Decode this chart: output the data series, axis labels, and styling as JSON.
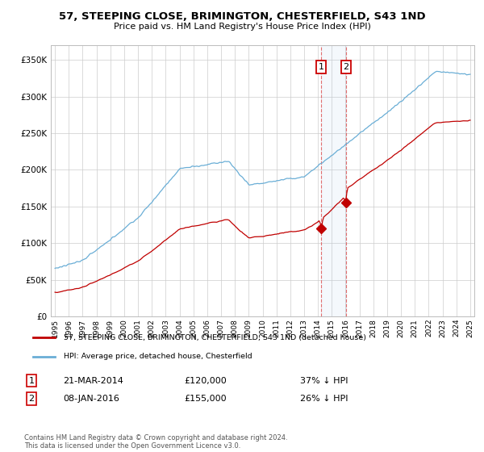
{
  "title": "57, STEEPING CLOSE, BRIMINGTON, CHESTERFIELD, S43 1ND",
  "subtitle": "Price paid vs. HM Land Registry's House Price Index (HPI)",
  "hpi_color": "#6aaed6",
  "price_color": "#c00000",
  "vline_color": "#e06060",
  "sale1_x": 2014.22,
  "sale1_price": 120000,
  "sale1_date": "21-MAR-2014",
  "sale1_label": "37% ↓ HPI",
  "sale2_x": 2016.03,
  "sale2_price": 155000,
  "sale2_date": "08-JAN-2016",
  "sale2_label": "26% ↓ HPI",
  "ylim": [
    0,
    370000
  ],
  "xlim": [
    1994.7,
    2025.3
  ],
  "ylabel_ticks": [
    0,
    50000,
    100000,
    150000,
    200000,
    250000,
    300000,
    350000
  ],
  "xtick_years": [
    1995,
    1996,
    1997,
    1998,
    1999,
    2000,
    2001,
    2002,
    2003,
    2004,
    2005,
    2006,
    2007,
    2008,
    2009,
    2010,
    2011,
    2012,
    2013,
    2014,
    2015,
    2016,
    2017,
    2018,
    2019,
    2020,
    2021,
    2022,
    2023,
    2024,
    2025
  ],
  "legend_label_price": "57, STEEPING CLOSE, BRIMINGTON, CHESTERFIELD, S43 1ND (detached house)",
  "legend_label_hpi": "HPI: Average price, detached house, Chesterfield",
  "footer": "Contains HM Land Registry data © Crown copyright and database right 2024.\nThis data is licensed under the Open Government Licence v3.0.",
  "bg_color": "#ffffff",
  "grid_color": "#cccccc"
}
